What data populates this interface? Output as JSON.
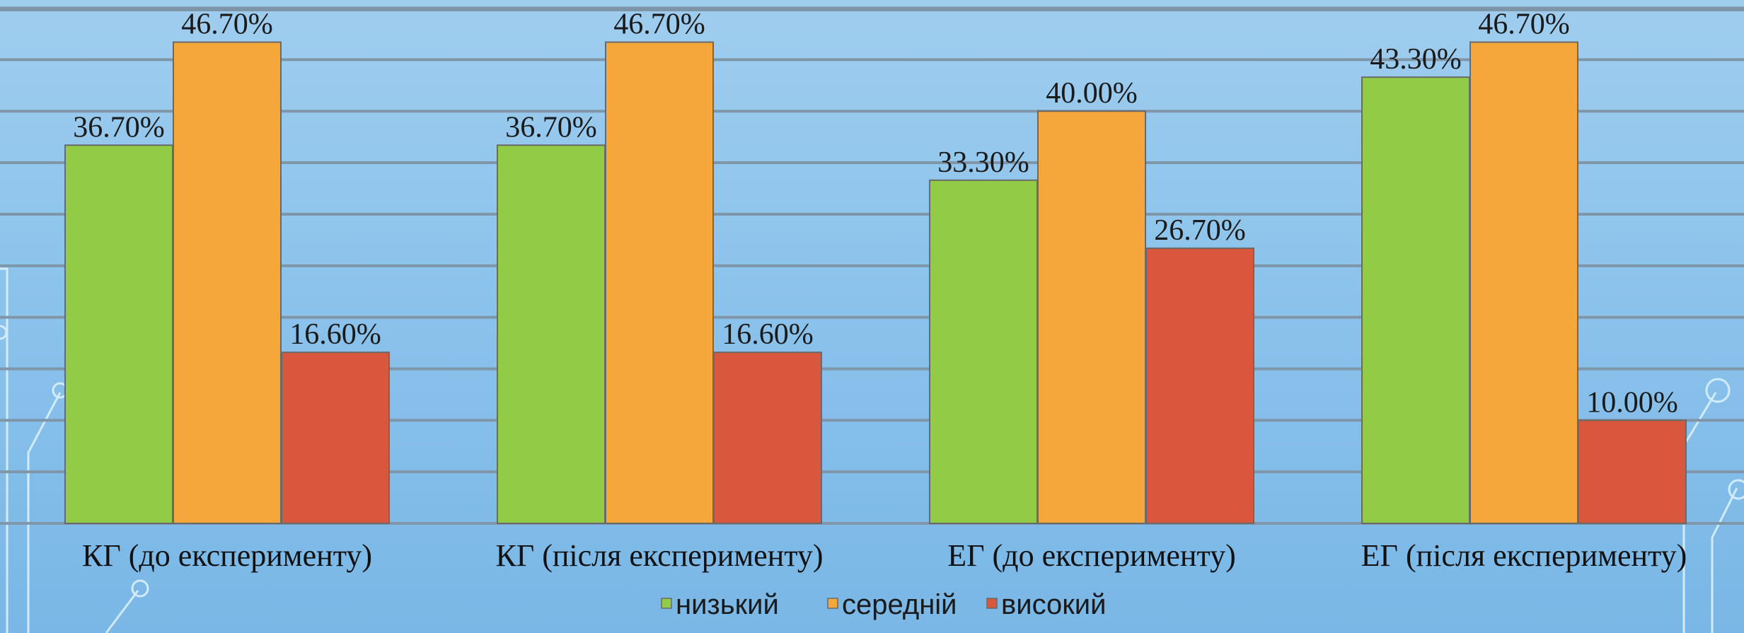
{
  "chart_data": {
    "type": "bar",
    "title": "",
    "xlabel": "",
    "ylabel": "",
    "ylim": [
      0,
      50
    ],
    "grid": true,
    "legend_position": "bottom",
    "categories": [
      "КГ (до експерименту)",
      "КГ (після експерименту)",
      "ЕГ (до експерименту)",
      "ЕГ (після експерименту)"
    ],
    "series": [
      {
        "name": "низький",
        "color": "#92cc47",
        "values": [
          36.7,
          36.7,
          33.3,
          43.3
        ],
        "labels": [
          "36.70%",
          "36.70%",
          "33.30%",
          "43.30%"
        ]
      },
      {
        "name": "середній",
        "color": "#f6a73a",
        "values": [
          46.7,
          46.7,
          40.0,
          46.7
        ],
        "labels": [
          "46.70%",
          "46.70%",
          "40.00%",
          "46.70%"
        ]
      },
      {
        "name": "високий",
        "color": "#d9573d",
        "values": [
          16.6,
          16.6,
          26.7,
          10.0
        ],
        "labels": [
          "16.60%",
          "16.60%",
          "26.70%",
          "10.00%"
        ]
      }
    ]
  }
}
